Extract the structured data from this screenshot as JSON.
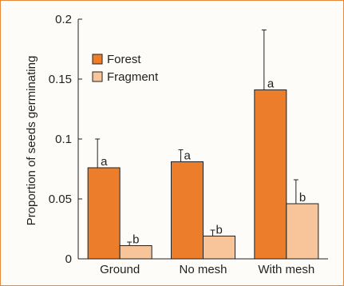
{
  "chart_data": {
    "type": "bar",
    "title": "",
    "xlabel": "",
    "ylabel": "Proportion of seeds germinating",
    "ylim": [
      0,
      0.2
    ],
    "yticks": [
      0,
      0.05,
      0.1,
      0.15,
      0.2
    ],
    "ytick_labels": [
      "0",
      "0.05",
      "0.1",
      "0.15",
      "0.2"
    ],
    "categories": [
      "Ground",
      "No mesh",
      "With mesh"
    ],
    "legend_position": "top-left",
    "grid": false,
    "series": [
      {
        "name": "Forest",
        "color": "#ec7d2a",
        "values": [
          0.076,
          0.081,
          0.141
        ],
        "error_upper": [
          0.024,
          0.01,
          0.05
        ],
        "significance": [
          "a",
          "a",
          "a"
        ]
      },
      {
        "name": "Fragment",
        "color": "#f8c49a",
        "values": [
          0.011,
          0.019,
          0.046
        ],
        "error_upper": [
          0.003,
          0.005,
          0.02
        ],
        "significance": [
          "b",
          "b",
          "b"
        ]
      }
    ]
  }
}
